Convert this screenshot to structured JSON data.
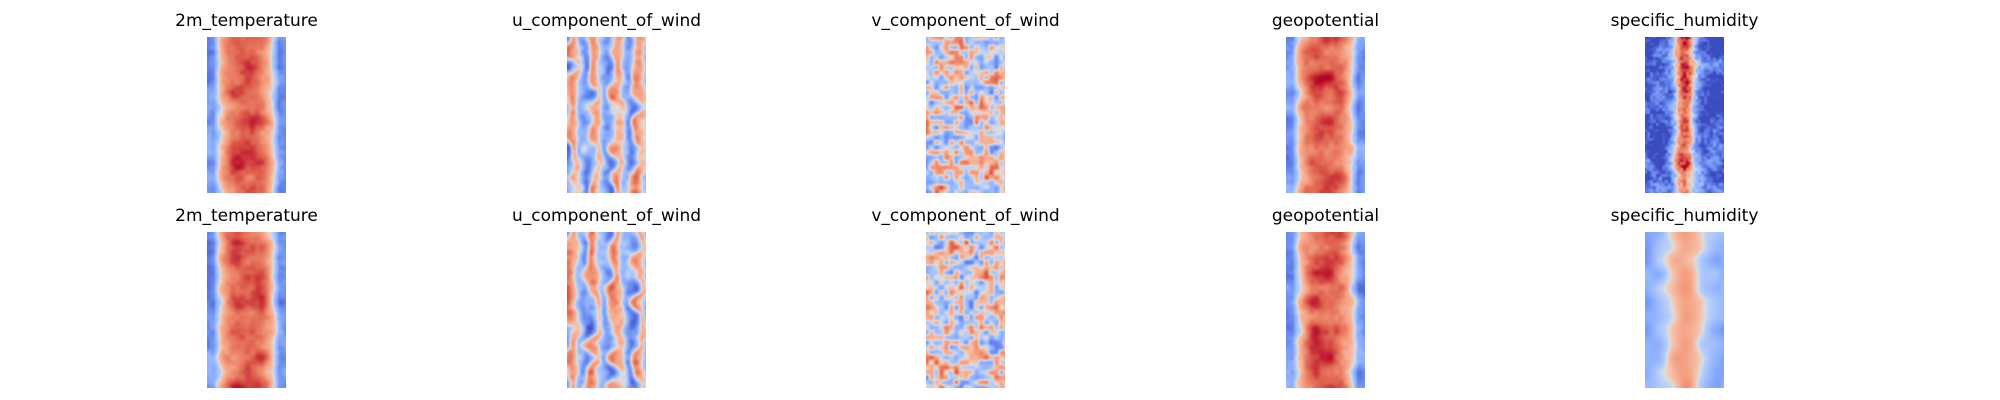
{
  "colormap": "coolwarm",
  "colors": {
    "low": "#3b4cc0",
    "mid": "#dddddd",
    "high": "#b40426"
  },
  "chart_data": [
    {
      "type": "heatmap",
      "title": "2m_temperature",
      "pattern": "warm_band",
      "row": 1
    },
    {
      "type": "heatmap",
      "title": "u_component_of_wind",
      "pattern": "streaks",
      "row": 1
    },
    {
      "type": "heatmap",
      "title": "v_component_of_wind",
      "pattern": "noise",
      "row": 1
    },
    {
      "type": "heatmap",
      "title": "geopotential",
      "pattern": "warm_band",
      "row": 1
    },
    {
      "type": "heatmap",
      "title": "specific_humidity",
      "pattern": "narrow_core",
      "row": 1
    },
    {
      "type": "heatmap",
      "title": "2m_temperature",
      "pattern": "warm_band",
      "row": 2
    },
    {
      "type": "heatmap",
      "title": "u_component_of_wind",
      "pattern": "streaks",
      "row": 2
    },
    {
      "type": "heatmap",
      "title": "v_component_of_wind",
      "pattern": "noise",
      "row": 2
    },
    {
      "type": "heatmap",
      "title": "geopotential",
      "pattern": "warm_band",
      "row": 2
    },
    {
      "type": "heatmap",
      "title": "specific_humidity",
      "pattern": "soft_core",
      "row": 2
    }
  ]
}
